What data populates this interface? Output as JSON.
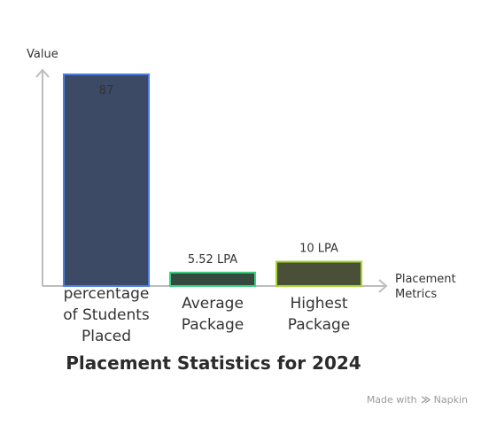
{
  "chart_data": {
    "type": "bar",
    "title": "Placement Statistics for 2024",
    "ylabel": "Value",
    "xlabel": [
      "Placement",
      "Metrics"
    ],
    "grid": false,
    "legend": "none",
    "bars": [
      {
        "category_lines": [
          "percentage",
          "of Students",
          "Placed"
        ],
        "value": 87,
        "value_label": "87",
        "label_position": "inside",
        "fill": "#3c4a66",
        "stroke": "#4a7fe0",
        "label_color": "#5b8def"
      },
      {
        "category_lines": [
          "Average",
          "Package"
        ],
        "value": 5.52,
        "value_label": "5.52 LPA",
        "label_position": "above",
        "fill": "#344a3e",
        "stroke": "#3ccf7f",
        "label_color": "#333333"
      },
      {
        "category_lines": [
          "Highest",
          "Package"
        ],
        "value": 10,
        "value_label": "10 LPA",
        "label_position": "above",
        "fill": "#4a4f38",
        "stroke": "#a6d233",
        "label_color": "#333333"
      }
    ]
  },
  "watermark": {
    "prefix": "Made with",
    "brand": "Napkin",
    "icon": "napkin-logo-icon"
  }
}
